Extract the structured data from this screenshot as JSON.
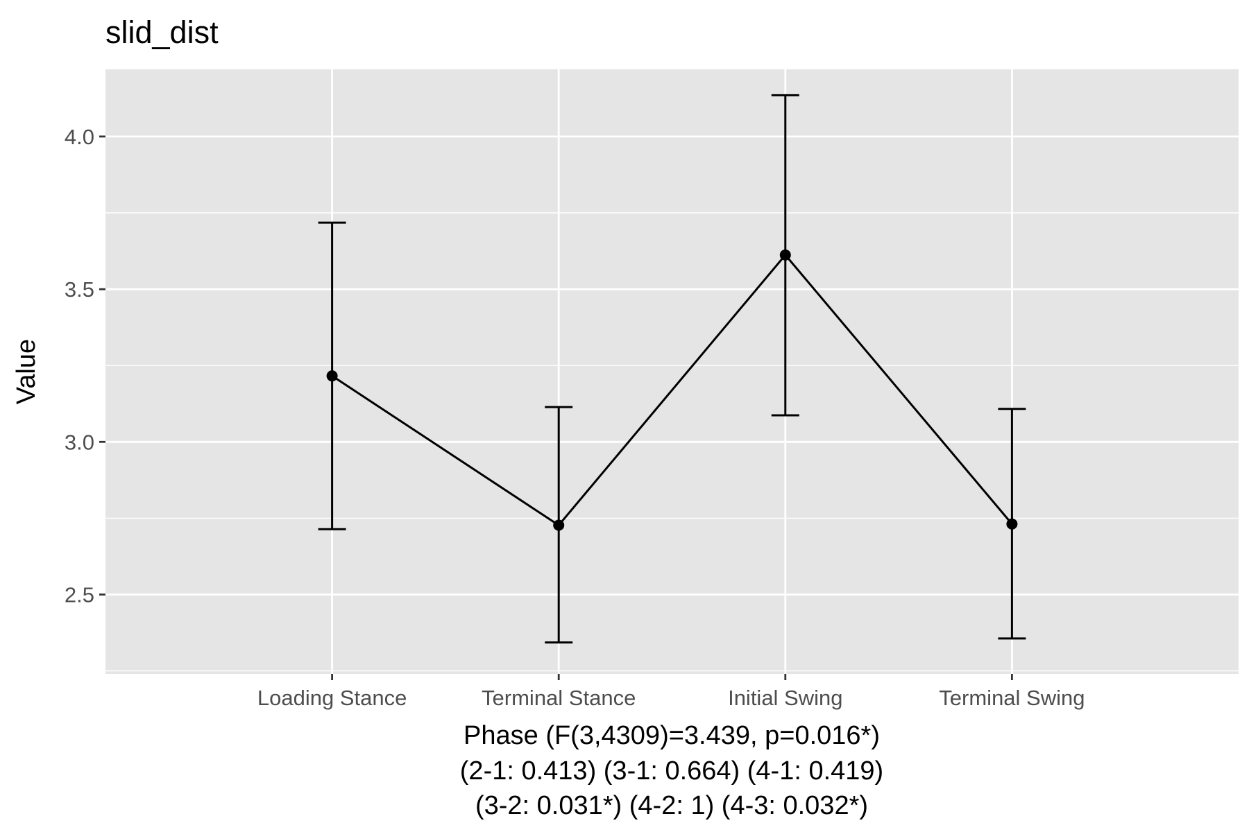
{
  "chart_data": {
    "type": "line",
    "title": "slid_dist",
    "ylabel": "Value",
    "xlabel_lines": [
      "Phase (F(3,4309)=3.439, p=0.016*)",
      "(2-1: 0.413) (3-1: 0.664) (4-1: 0.419)",
      "(3-2: 0.031*) (4-2: 1) (4-3: 0.032*)"
    ],
    "categories": [
      "Loading Stance",
      "Terminal Stance",
      "Initial Swing",
      "Terminal Swing"
    ],
    "series": [
      {
        "values": [
          3.216,
          2.727,
          3.612,
          2.731
        ],
        "lower": [
          2.714,
          2.343,
          3.087,
          2.356
        ],
        "upper": [
          3.718,
          3.114,
          4.135,
          3.108
        ]
      }
    ],
    "ylim": [
      2.24,
      4.22
    ],
    "yticks": [
      2.5,
      3.0,
      3.5,
      4.0
    ],
    "ytick_labels": [
      "2.5",
      "3.0",
      "3.5",
      "4.0"
    ],
    "grid": true,
    "colors": {
      "panel": "#e5e5e5",
      "grid": "#ffffff",
      "line": "#000000",
      "tick_text": "#4d4d4d",
      "tick_mark": "#333333"
    }
  }
}
